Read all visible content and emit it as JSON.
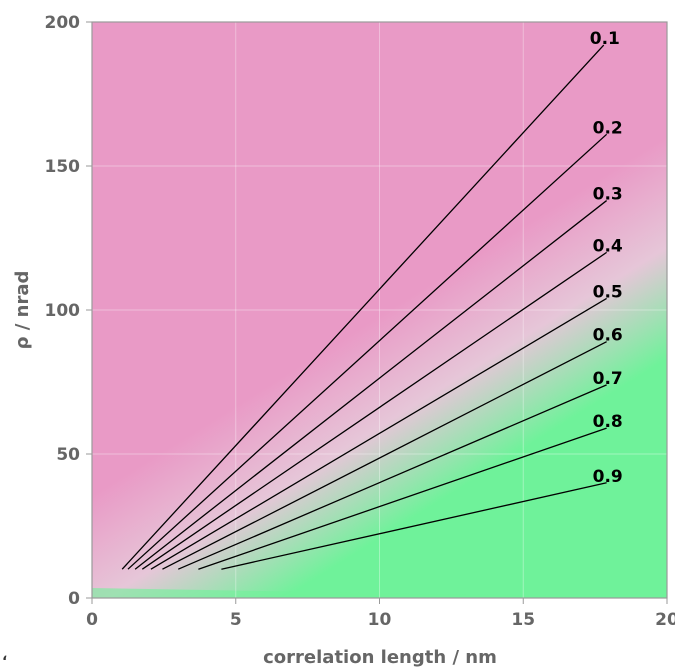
{
  "chart_data": {
    "type": "heatmap",
    "title": "",
    "xlabel": "correlation length / nm",
    "ylabel": "ρ / nrad",
    "xlim": [
      0,
      20
    ],
    "ylim": [
      0,
      200
    ],
    "x_ticks": [
      0,
      5,
      10,
      15,
      20
    ],
    "y_ticks": [
      0,
      50,
      100,
      150,
      200
    ],
    "x_tick_labels": [
      "0",
      "5",
      "10",
      "15",
      "20"
    ],
    "y_tick_labels": [
      "0",
      "50",
      "100",
      "150",
      "200"
    ],
    "grid": true,
    "colormap": {
      "low_color": "#6ff29a",
      "mid_color": "#e6c6d8",
      "high_color": "#e99ac6"
    },
    "contours": [
      {
        "label": "0.1",
        "start": [
          1.05,
          10
        ],
        "end": [
          17.8,
          192
        ]
      },
      {
        "label": "0.2",
        "start": [
          1.25,
          10
        ],
        "end": [
          17.9,
          161
        ]
      },
      {
        "label": "0.3",
        "start": [
          1.5,
          10
        ],
        "end": [
          17.9,
          138
        ]
      },
      {
        "label": "0.4",
        "start": [
          1.75,
          10
        ],
        "end": [
          17.9,
          120
        ]
      },
      {
        "label": "0.5",
        "start": [
          2.05,
          10
        ],
        "end": [
          17.9,
          104
        ]
      },
      {
        "label": "0.6",
        "start": [
          2.45,
          10
        ],
        "end": [
          17.9,
          89
        ]
      },
      {
        "label": "0.7",
        "start": [
          3.0,
          10
        ],
        "end": [
          17.9,
          74
        ]
      },
      {
        "label": "0.8",
        "start": [
          3.7,
          10
        ],
        "end": [
          17.9,
          59
        ]
      },
      {
        "label": "0.9",
        "start": [
          4.5,
          10
        ],
        "end": [
          17.9,
          40
        ]
      }
    ],
    "stray_mark": "ʻ"
  }
}
